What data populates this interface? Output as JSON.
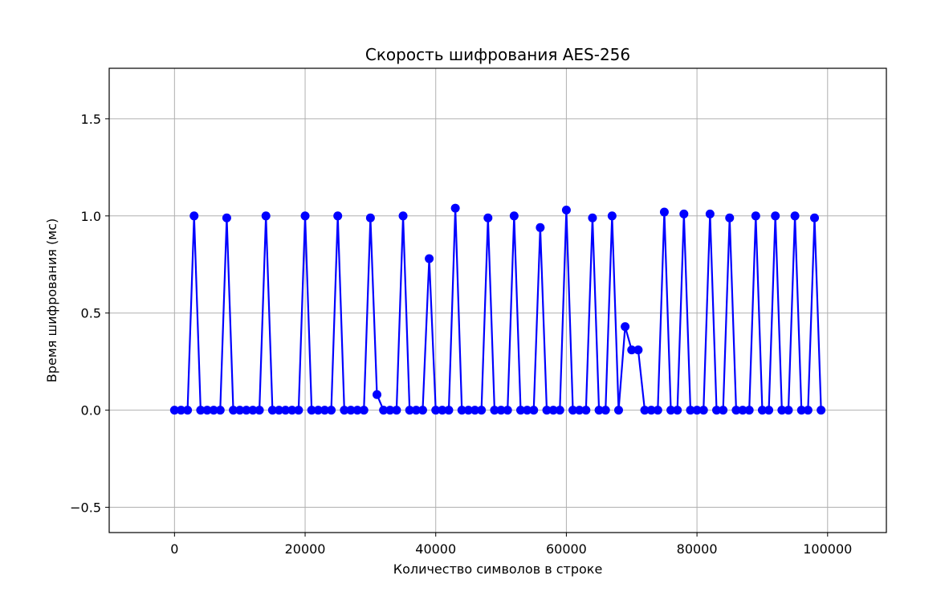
{
  "chart_data": {
    "type": "line",
    "title": "Скорость шифрования AES-256",
    "xlabel": "Количество символов в строке",
    "ylabel": "Время шифрования (мс)",
    "xlim": [
      -10000,
      109000
    ],
    "ylim": [
      -0.63,
      1.76
    ],
    "xticks": [
      0,
      20000,
      40000,
      60000,
      80000,
      100000
    ],
    "xtick_labels": [
      "0",
      "20000",
      "40000",
      "60000",
      "80000",
      "100000"
    ],
    "yticks": [
      -0.5,
      0.0,
      0.5,
      1.0,
      1.5
    ],
    "ytick_labels": [
      "−0.5",
      "0.0",
      "0.5",
      "1.0",
      "1.5"
    ],
    "grid": true,
    "color": "#0000ff",
    "marker": "circle",
    "series": [
      {
        "x": [
          0,
          1000,
          2000,
          3000,
          4000,
          5000,
          6000,
          7000,
          8000,
          9000,
          10000,
          11000,
          12000,
          13000,
          14000,
          15000,
          16000,
          17000,
          18000,
          19000,
          20000,
          21000,
          22000,
          23000,
          24000,
          25000,
          26000,
          27000,
          28000,
          29000,
          30000,
          31000,
          32000,
          33000,
          34000,
          35000,
          36000,
          37000,
          38000,
          39000,
          40000,
          41000,
          42000,
          43000,
          44000,
          45000,
          46000,
          47000,
          48000,
          49000,
          50000,
          51000,
          52000,
          53000,
          54000,
          55000,
          56000,
          57000,
          58000,
          59000,
          60000,
          61000,
          62000,
          63000,
          64000,
          65000,
          66000,
          67000,
          68000,
          69000,
          70000,
          71000,
          72000,
          73000,
          74000,
          75000,
          76000,
          77000,
          78000,
          79000,
          80000,
          81000,
          82000,
          83000,
          84000,
          85000,
          86000,
          87000,
          88000,
          89000,
          90000,
          91000,
          92000,
          93000,
          94000,
          95000,
          96000,
          97000,
          98000,
          99000
        ],
        "y": [
          0,
          0,
          0,
          1.0,
          0,
          0,
          0,
          0,
          0.99,
          0,
          0,
          0,
          0,
          0,
          1.0,
          0,
          0,
          0,
          0,
          0,
          1.0,
          0,
          0,
          0,
          0,
          1.0,
          0,
          0,
          0,
          0,
          0.99,
          0.08,
          0,
          0,
          0,
          1.0,
          0,
          0,
          0,
          0.78,
          0,
          0,
          0,
          1.04,
          0,
          0,
          0,
          0,
          0.99,
          0,
          0,
          0,
          1.0,
          0,
          0,
          0,
          0.94,
          0,
          0,
          0,
          1.03,
          0,
          0,
          0,
          0.99,
          0,
          0,
          1.0,
          0,
          0.43,
          0.31,
          0.31,
          0,
          0,
          0,
          1.02,
          0,
          0,
          1.01,
          0,
          0,
          0,
          1.01,
          0,
          0,
          0.99,
          0,
          0,
          0,
          1.0,
          0,
          0,
          1.0,
          0,
          0,
          1.0,
          0,
          0,
          0.99,
          0
        ]
      }
    ]
  }
}
